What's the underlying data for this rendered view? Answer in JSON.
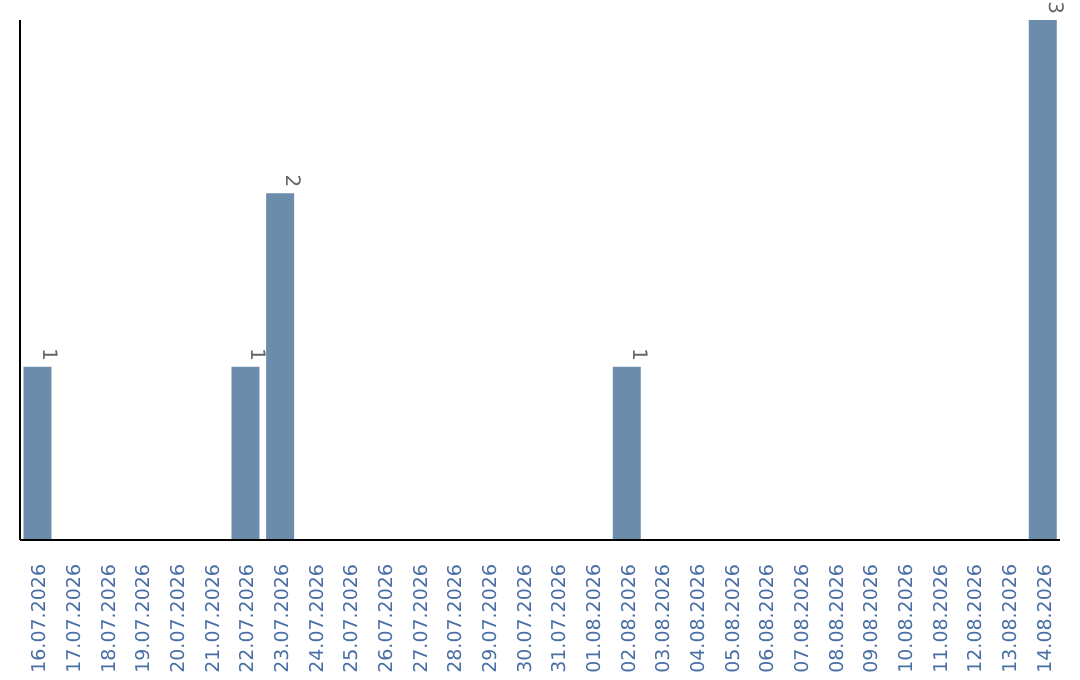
{
  "chart_data": {
    "type": "bar",
    "categories": [
      "16.07.2026",
      "17.07.2026",
      "18.07.2026",
      "19.07.2026",
      "20.07.2026",
      "21.07.2026",
      "22.07.2026",
      "23.07.2026",
      "24.07.2026",
      "25.07.2026",
      "26.07.2026",
      "27.07.2026",
      "28.07.2026",
      "29.07.2026",
      "30.07.2026",
      "31.07.2026",
      "01.08.2026",
      "02.08.2026",
      "03.08.2026",
      "04.08.2026",
      "05.08.2026",
      "06.08.2026",
      "07.08.2026",
      "08.08.2026",
      "09.08.2026",
      "10.08.2026",
      "11.08.2026",
      "12.08.2026",
      "13.08.2026",
      "14.08.2026"
    ],
    "values": [
      1,
      0,
      0,
      0,
      0,
      0,
      1,
      2,
      0,
      0,
      0,
      0,
      0,
      0,
      0,
      0,
      0,
      1,
      0,
      0,
      0,
      0,
      0,
      0,
      0,
      0,
      0,
      0,
      0,
      3
    ],
    "value_labels": [
      "1",
      null,
      null,
      null,
      null,
      null,
      "1",
      "2",
      null,
      null,
      null,
      null,
      null,
      null,
      null,
      null,
      null,
      "1",
      null,
      null,
      null,
      null,
      null,
      null,
      null,
      null,
      null,
      null,
      null,
      "3"
    ],
    "color": "#6b8caa"
  }
}
